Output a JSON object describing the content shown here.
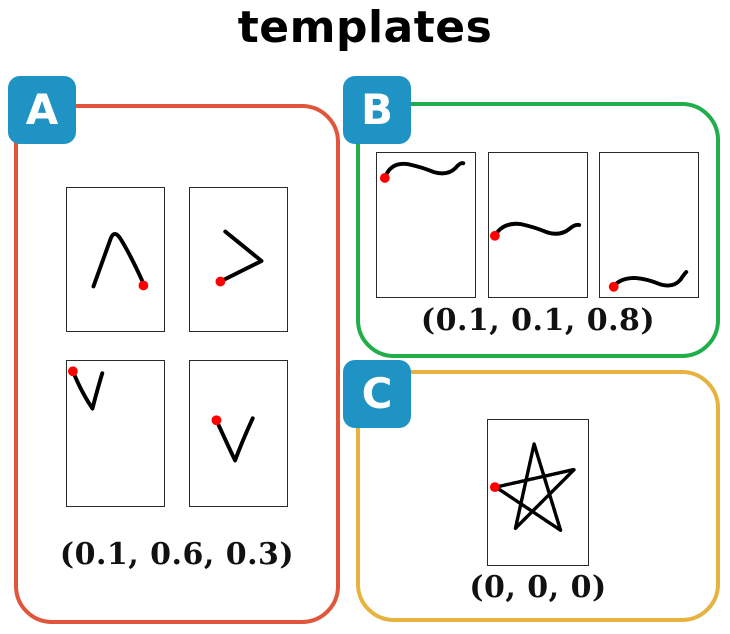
{
  "title": "templates",
  "colors": {
    "panel_a_border": "#e0563a",
    "panel_b_border": "#22ad4b",
    "panel_c_border": "#e6b33e",
    "badge_fill": "#1f93c4",
    "stroke": "#000000",
    "start_point": "#ff0000"
  },
  "panels": {
    "a": {
      "label": "A",
      "caption": "(0.1, 0.6, 0.3)"
    },
    "b": {
      "label": "B",
      "caption": "(0.1, 0.1, 0.8)"
    },
    "c": {
      "label": "C",
      "caption": "(0, 0, 0)"
    }
  }
}
